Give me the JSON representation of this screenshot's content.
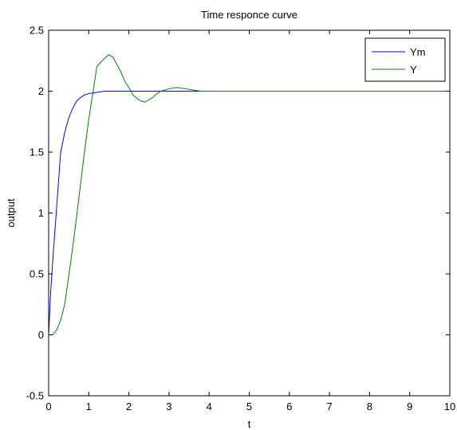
{
  "chart_data": {
    "type": "line",
    "title": "Time responce curve",
    "xlabel": "t",
    "ylabel": "output",
    "xlim": [
      0,
      10
    ],
    "ylim": [
      -0.5,
      2.5
    ],
    "xticks": [
      0,
      1,
      2,
      3,
      4,
      5,
      6,
      7,
      8,
      9,
      10
    ],
    "yticks": [
      -0.5,
      0,
      0.5,
      1,
      1.5,
      2,
      2.5
    ],
    "xtick_labels": [
      "0",
      "1",
      "2",
      "3",
      "4",
      "5",
      "6",
      "7",
      "8",
      "9",
      "10"
    ],
    "ytick_labels": [
      "-0.5",
      "0",
      "0.5",
      "1",
      "1.5",
      "2",
      "2.5"
    ],
    "grid": false,
    "legend_position": "top-right",
    "series": [
      {
        "name": "Ym",
        "color": "#0000ff",
        "x": [
          0,
          0.05,
          0.1,
          0.2,
          0.3,
          0.4,
          0.5,
          0.6,
          0.7,
          0.8,
          0.9,
          1.0,
          1.2,
          1.4,
          1.6,
          1.8,
          2.0,
          2.5,
          3.0,
          4.0,
          5.0,
          6.0,
          7.0,
          8.0,
          9.0,
          10.0
        ],
        "y": [
          0,
          0.35,
          0.6,
          1.05,
          1.5,
          1.66,
          1.78,
          1.86,
          1.92,
          1.95,
          1.97,
          1.98,
          1.99,
          2.0,
          2.0,
          2.0,
          2.0,
          2.0,
          2.0,
          2.0,
          2.0,
          2.0,
          2.0,
          2.0,
          2.0,
          2.0
        ]
      },
      {
        "name": "Y",
        "color": "#008000",
        "x": [
          0,
          0.1,
          0.2,
          0.3,
          0.4,
          0.5,
          0.6,
          0.7,
          0.8,
          0.9,
          1.0,
          1.1,
          1.2,
          1.3,
          1.4,
          1.5,
          1.6,
          1.7,
          1.8,
          1.9,
          2.0,
          2.1,
          2.2,
          2.3,
          2.4,
          2.5,
          2.6,
          2.7,
          2.8,
          2.9,
          3.0,
          3.2,
          3.4,
          3.6,
          3.8,
          4.0,
          4.5,
          5.0,
          6.0,
          7.0,
          8.0,
          9.0,
          10.0
        ],
        "y": [
          0,
          0.0,
          0.04,
          0.12,
          0.25,
          0.48,
          0.72,
          0.98,
          1.25,
          1.52,
          1.77,
          1.98,
          2.2,
          2.24,
          2.27,
          2.3,
          2.28,
          2.22,
          2.16,
          2.08,
          2.03,
          1.97,
          1.94,
          1.92,
          1.91,
          1.93,
          1.95,
          1.98,
          2.0,
          2.01,
          2.02,
          2.03,
          2.02,
          2.01,
          2.0,
          2.0,
          2.0,
          2.0,
          2.0,
          2.0,
          2.0,
          2.0,
          2.0
        ]
      }
    ]
  }
}
